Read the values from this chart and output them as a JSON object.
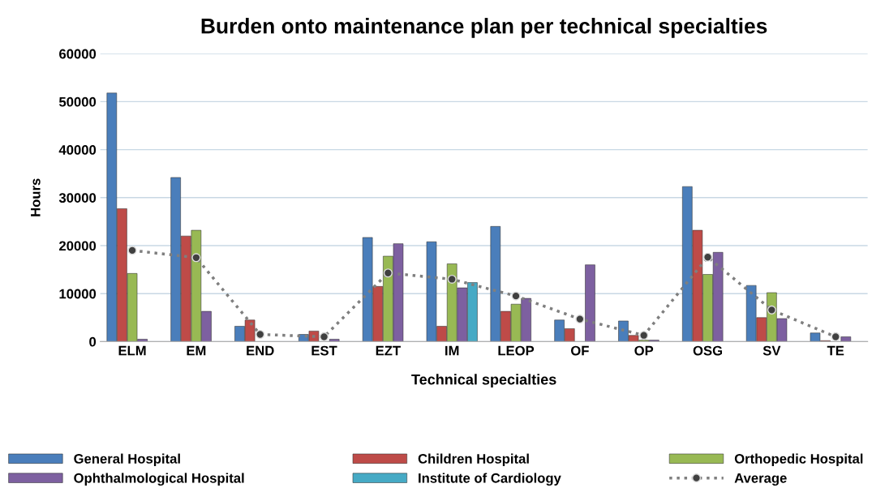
{
  "chart_data": {
    "type": "bar",
    "title": "Burden onto maintenance plan per technical specialties",
    "xlabel": "Technical specialties",
    "ylabel": "Hours",
    "categories": [
      "ELM",
      "EM",
      "END",
      "EST",
      "EZT",
      "IM",
      "LEOP",
      "OF",
      "OP",
      "OSG",
      "SV",
      "TE"
    ],
    "series": [
      {
        "name": "General Hospital",
        "color": "#4a7ebb",
        "values": [
          51800,
          34200,
          3200,
          1500,
          21700,
          20800,
          24000,
          4500,
          4300,
          32300,
          11700,
          1800
        ]
      },
      {
        "name": "Children Hospital",
        "color": "#be4b48",
        "values": [
          27700,
          22000,
          4500,
          2200,
          11500,
          3200,
          6300,
          2700,
          1300,
          23200,
          5000,
          200
        ]
      },
      {
        "name": "Orthopedic Hospital",
        "color": "#98b954",
        "values": [
          14200,
          23200,
          null,
          null,
          17800,
          16200,
          7800,
          null,
          300,
          14000,
          10200,
          null
        ]
      },
      {
        "name": "Ophthalmological Hospital",
        "color": "#7d60a0",
        "values": [
          500,
          6300,
          null,
          500,
          20400,
          11200,
          9000,
          16000,
          300,
          18600,
          4800,
          1000
        ]
      },
      {
        "name": "Institute of Cardiology",
        "color": "#46aac5",
        "values": [
          null,
          null,
          null,
          null,
          null,
          12300,
          null,
          null,
          null,
          null,
          null,
          null
        ]
      },
      {
        "name": "Average",
        "type": "line",
        "color": "#7f7f7f",
        "marker": "circle",
        "line_style": "dotted",
        "values": [
          19000,
          17500,
          1500,
          1000,
          14300,
          13000,
          9500,
          4700,
          1300,
          17600,
          6600,
          1000
        ]
      }
    ],
    "ylim": [
      0,
      60000
    ],
    "yticks": [
      0,
      10000,
      20000,
      30000,
      40000,
      50000,
      60000
    ],
    "grid": "y",
    "legend": "bottom"
  }
}
